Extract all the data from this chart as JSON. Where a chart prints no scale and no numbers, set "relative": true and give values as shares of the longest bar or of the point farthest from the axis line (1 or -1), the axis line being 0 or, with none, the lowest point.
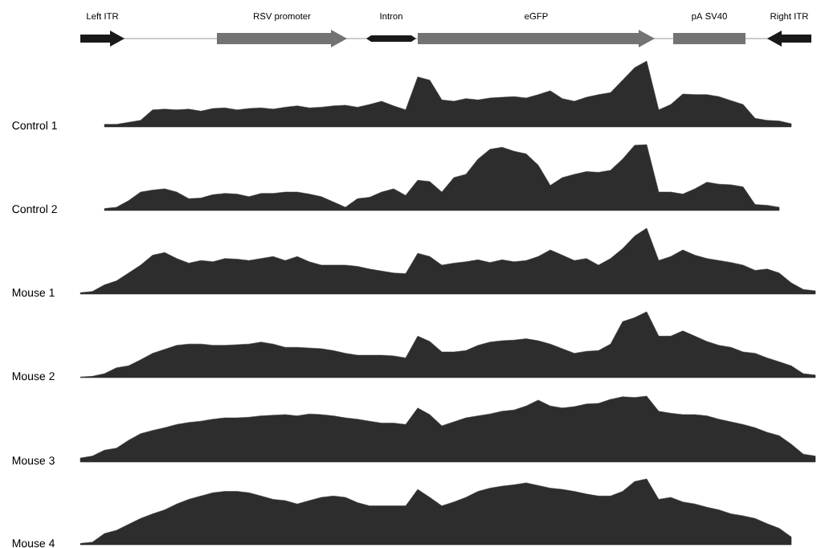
{
  "chart_data": [
    {
      "type": "other",
      "annotations": [
        "Left ITR",
        "RSV promoter",
        "Intron",
        "eGFP",
        "pA SV40",
        "Right ITR"
      ]
    },
    {
      "type": "area",
      "ylabel": "Control 1",
      "relative": true,
      "color": "#2d2d2d",
      "categories": [
        null,
        null,
        null,
        null,
        null,
        null,
        null,
        null,
        null,
        null,
        null,
        null,
        null,
        null,
        null,
        null,
        null,
        null,
        null,
        null,
        null,
        null,
        null,
        null,
        null,
        null,
        null,
        null,
        null,
        null,
        null,
        null,
        null,
        null,
        null,
        null,
        null,
        null,
        null,
        null,
        null,
        null,
        null,
        null,
        null,
        null,
        null,
        null,
        null,
        null,
        null,
        null,
        null,
        null,
        null,
        null,
        null,
        null,
        null,
        null,
        null,
        null
      ],
      "values": [
        null,
        null,
        0.04,
        0.04,
        0.07,
        0.1,
        0.26,
        0.27,
        0.26,
        0.27,
        0.24,
        0.28,
        0.29,
        0.26,
        0.28,
        0.29,
        0.27,
        0.3,
        0.32,
        0.29,
        0.3,
        0.32,
        0.33,
        0.3,
        0.34,
        0.39,
        0.32,
        0.26,
        0.76,
        0.71,
        0.41,
        0.39,
        0.43,
        0.41,
        0.44,
        0.45,
        0.46,
        0.44,
        0.49,
        0.55,
        0.43,
        0.39,
        0.45,
        0.49,
        0.52,
        0.71,
        0.9,
        1,
        0.26,
        0.34,
        0.5,
        0.49,
        0.49,
        0.46,
        0.4,
        0.34,
        0.13,
        0.1,
        0.09,
        0.05,
        null,
        null
      ]
    },
    {
      "type": "area",
      "ylabel": "Control 2",
      "relative": true,
      "color": "#2d2d2d",
      "categories": [
        null,
        null,
        null,
        null,
        null,
        null,
        null,
        null,
        null,
        null,
        null,
        null,
        null,
        null,
        null,
        null,
        null,
        null,
        null,
        null,
        null,
        null,
        null,
        null,
        null,
        null,
        null,
        null,
        null,
        null,
        null,
        null,
        null,
        null,
        null,
        null,
        null,
        null,
        null,
        null,
        null,
        null,
        null,
        null,
        null,
        null,
        null,
        null,
        null,
        null,
        null,
        null,
        null,
        null,
        null,
        null,
        null,
        null,
        null,
        null,
        null,
        null
      ],
      "values": [
        null,
        null,
        0.03,
        0.05,
        0.15,
        0.28,
        0.31,
        0.33,
        0.28,
        0.18,
        0.19,
        0.24,
        0.26,
        0.25,
        0.21,
        0.26,
        0.26,
        0.28,
        0.28,
        0.25,
        0.21,
        0.13,
        0.05,
        0.18,
        0.2,
        0.28,
        0.33,
        0.23,
        0.46,
        0.44,
        0.28,
        0.5,
        0.55,
        0.78,
        0.93,
        0.96,
        0.9,
        0.86,
        0.69,
        0.38,
        0.5,
        0.55,
        0.59,
        0.58,
        0.61,
        0.78,
        0.99,
        1,
        0.28,
        0.28,
        0.25,
        0.33,
        0.43,
        0.4,
        0.39,
        0.36,
        0.09,
        0.08,
        0.05,
        null,
        null,
        null
      ]
    },
    {
      "type": "area",
      "ylabel": "Mouse 1",
      "relative": true,
      "color": "#2d2d2d",
      "categories": [
        null,
        null,
        null,
        null,
        null,
        null,
        null,
        null,
        null,
        null,
        null,
        null,
        null,
        null,
        null,
        null,
        null,
        null,
        null,
        null,
        null,
        null,
        null,
        null,
        null,
        null,
        null,
        null,
        null,
        null,
        null,
        null,
        null,
        null,
        null,
        null,
        null,
        null,
        null,
        null,
        null,
        null,
        null,
        null,
        null,
        null,
        null,
        null,
        null,
        null,
        null,
        null,
        null,
        null,
        null,
        null,
        null,
        null,
        null,
        null,
        null,
        null
      ],
      "values": [
        0.02,
        0.04,
        0.14,
        0.2,
        0.32,
        0.44,
        0.59,
        0.63,
        0.54,
        0.47,
        0.51,
        0.49,
        0.54,
        0.53,
        0.51,
        0.54,
        0.57,
        0.51,
        0.57,
        0.49,
        0.44,
        0.44,
        0.44,
        0.42,
        0.38,
        0.35,
        0.32,
        0.31,
        0.62,
        0.57,
        0.44,
        0.47,
        0.49,
        0.52,
        0.48,
        0.52,
        0.49,
        0.51,
        0.57,
        0.67,
        0.59,
        0.51,
        0.54,
        0.44,
        0.54,
        0.69,
        0.88,
        1,
        0.51,
        0.57,
        0.67,
        0.59,
        0.54,
        0.51,
        0.48,
        0.44,
        0.36,
        0.38,
        0.32,
        0.17,
        0.07,
        0.05
      ]
    },
    {
      "type": "area",
      "ylabel": "Mouse 2",
      "relative": true,
      "color": "#2d2d2d",
      "categories": [
        null,
        null,
        null,
        null,
        null,
        null,
        null,
        null,
        null,
        null,
        null,
        null,
        null,
        null,
        null,
        null,
        null,
        null,
        null,
        null,
        null,
        null,
        null,
        null,
        null,
        null,
        null,
        null,
        null,
        null,
        null,
        null,
        null,
        null,
        null,
        null,
        null,
        null,
        null,
        null,
        null,
        null,
        null,
        null,
        null,
        null,
        null,
        null,
        null,
        null,
        null,
        null,
        null,
        null,
        null,
        null,
        null,
        null,
        null,
        null,
        null,
        null
      ],
      "values": [
        0.01,
        0.02,
        0.06,
        0.15,
        0.18,
        0.27,
        0.37,
        0.43,
        0.49,
        0.51,
        0.51,
        0.49,
        0.49,
        0.5,
        0.51,
        0.54,
        0.51,
        0.46,
        0.46,
        0.45,
        0.44,
        0.41,
        0.37,
        0.34,
        0.34,
        0.34,
        0.33,
        0.3,
        0.63,
        0.55,
        0.39,
        0.39,
        0.41,
        0.49,
        0.54,
        0.56,
        0.57,
        0.59,
        0.56,
        0.51,
        0.44,
        0.37,
        0.4,
        0.41,
        0.51,
        0.85,
        0.91,
        1,
        0.63,
        0.63,
        0.71,
        0.63,
        0.55,
        0.49,
        0.46,
        0.39,
        0.37,
        0.3,
        0.24,
        0.18,
        0.06,
        0.04
      ]
    },
    {
      "type": "area",
      "ylabel": "Mouse 3",
      "relative": true,
      "color": "#2d2d2d",
      "categories": [
        null,
        null,
        null,
        null,
        null,
        null,
        null,
        null,
        null,
        null,
        null,
        null,
        null,
        null,
        null,
        null,
        null,
        null,
        null,
        null,
        null,
        null,
        null,
        null,
        null,
        null,
        null,
        null,
        null,
        null,
        null,
        null,
        null,
        null,
        null,
        null,
        null,
        null,
        null,
        null,
        null,
        null,
        null,
        null,
        null,
        null,
        null,
        null,
        null,
        null,
        null,
        null,
        null,
        null,
        null,
        null,
        null,
        null,
        null,
        null,
        null,
        null
      ],
      "values": [
        0.06,
        0.09,
        0.18,
        0.21,
        0.33,
        0.43,
        0.48,
        0.52,
        0.57,
        0.6,
        0.62,
        0.65,
        0.67,
        0.67,
        0.68,
        0.7,
        0.71,
        0.72,
        0.7,
        0.73,
        0.72,
        0.7,
        0.67,
        0.65,
        0.62,
        0.59,
        0.59,
        0.57,
        0.82,
        0.72,
        0.55,
        0.61,
        0.67,
        0.7,
        0.73,
        0.77,
        0.79,
        0.85,
        0.94,
        0.85,
        0.82,
        0.84,
        0.88,
        0.89,
        0.95,
        0.99,
        0.98,
        1,
        0.77,
        0.74,
        0.72,
        0.72,
        0.7,
        0.65,
        0.61,
        0.57,
        0.52,
        0.45,
        0.4,
        0.27,
        0.12,
        0.09
      ]
    },
    {
      "type": "area",
      "ylabel": "Mouse 4",
      "relative": true,
      "color": "#2d2d2d",
      "categories": [
        null,
        null,
        null,
        null,
        null,
        null,
        null,
        null,
        null,
        null,
        null,
        null,
        null,
        null,
        null,
        null,
        null,
        null,
        null,
        null,
        null,
        null,
        null,
        null,
        null,
        null,
        null,
        null,
        null,
        null,
        null,
        null,
        null,
        null,
        null,
        null,
        null,
        null,
        null,
        null,
        null,
        null,
        null,
        null,
        null,
        null,
        null,
        null,
        null,
        null,
        null,
        null,
        null,
        null,
        null,
        null,
        null,
        null,
        null,
        null,
        null,
        null
      ],
      "values": [
        0.02,
        0.04,
        0.17,
        0.22,
        0.31,
        0.4,
        0.47,
        0.53,
        0.62,
        0.69,
        0.74,
        0.79,
        0.81,
        0.81,
        0.79,
        0.74,
        0.69,
        0.67,
        0.62,
        0.67,
        0.72,
        0.74,
        0.72,
        0.64,
        0.59,
        0.59,
        0.59,
        0.59,
        0.84,
        0.72,
        0.59,
        0.65,
        0.72,
        0.81,
        0.86,
        0.89,
        0.91,
        0.94,
        0.9,
        0.86,
        0.84,
        0.81,
        0.77,
        0.74,
        0.74,
        0.81,
        0.96,
        1,
        0.69,
        0.72,
        0.65,
        0.62,
        0.57,
        0.53,
        0.47,
        0.44,
        0.4,
        0.32,
        0.25,
        0.12,
        null,
        null
      ]
    }
  ]
}
